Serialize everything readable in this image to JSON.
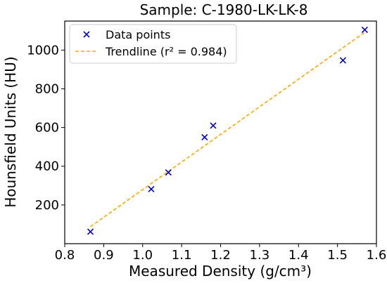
{
  "chart_data": {
    "type": "scatter",
    "title": "Sample: C-1980-LK-LK-8",
    "xlabel": "Measured Density (g/cm³)",
    "ylabel": "Hounsfield Units (HU)",
    "xlim": [
      0.8,
      1.6
    ],
    "ylim": [
      0,
      1150
    ],
    "xticks": [
      0.8,
      0.9,
      1.0,
      1.1,
      1.2,
      1.3,
      1.4,
      1.5,
      1.6
    ],
    "xtick_labels": [
      "0.8",
      "0.9",
      "1.0",
      "1.1",
      "1.2",
      "1.3",
      "1.4",
      "1.5",
      "1.6"
    ],
    "yticks": [
      200,
      400,
      600,
      800,
      1000
    ],
    "ytick_labels": [
      "200",
      "400",
      "600",
      "800",
      "1000"
    ],
    "grid": false,
    "legend_position": "top-left",
    "series": [
      {
        "name": "Data points",
        "marker": "x",
        "color": "#0000cc",
        "x": [
          0.866,
          1.022,
          1.066,
          1.159,
          1.181,
          1.514,
          1.57
        ],
        "y": [
          62,
          282,
          368,
          550,
          610,
          947,
          1105
        ]
      },
      {
        "name": "Trendline (r² = 0.984)",
        "style": "dashed",
        "color": "#ffa500",
        "x": [
          0.866,
          1.57
        ],
        "y": [
          88,
          1092
        ]
      }
    ]
  }
}
